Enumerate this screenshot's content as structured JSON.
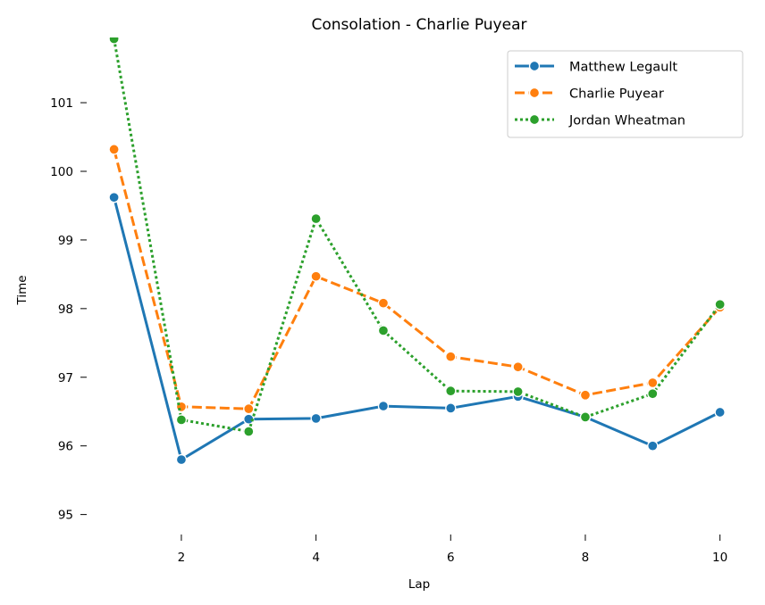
{
  "chart_data": {
    "type": "line",
    "title": "Consolation - Charlie Puyear",
    "xlabel": "Lap",
    "ylabel": "Time",
    "xlim": [
      0.7,
      10.35
    ],
    "ylim": [
      94.8,
      101.95
    ],
    "xticks": [
      2,
      4,
      6,
      8,
      10
    ],
    "yticks": [
      95,
      96,
      97,
      98,
      99,
      100,
      101
    ],
    "grid": false,
    "legend_position": "top-right",
    "x": [
      1,
      2,
      3,
      4,
      5,
      6,
      7,
      8,
      9,
      10
    ],
    "series": [
      {
        "name": "Matthew Legault",
        "color": "#1f77b4",
        "dash": "solid",
        "values": [
          99.62,
          95.8,
          96.39,
          96.4,
          96.58,
          96.55,
          96.72,
          96.42,
          96.0,
          96.49
        ]
      },
      {
        "name": "Charlie Puyear",
        "color": "#ff7f0e",
        "dash": "dashed",
        "values": [
          100.32,
          96.57,
          96.54,
          98.47,
          98.08,
          97.3,
          97.15,
          96.74,
          96.92,
          98.02
        ]
      },
      {
        "name": "Jordan Wheatman",
        "color": "#2ca02c",
        "dash": "dotted",
        "values": [
          101.93,
          96.38,
          96.21,
          99.31,
          97.68,
          96.8,
          96.79,
          96.42,
          96.76,
          98.06
        ]
      }
    ]
  }
}
